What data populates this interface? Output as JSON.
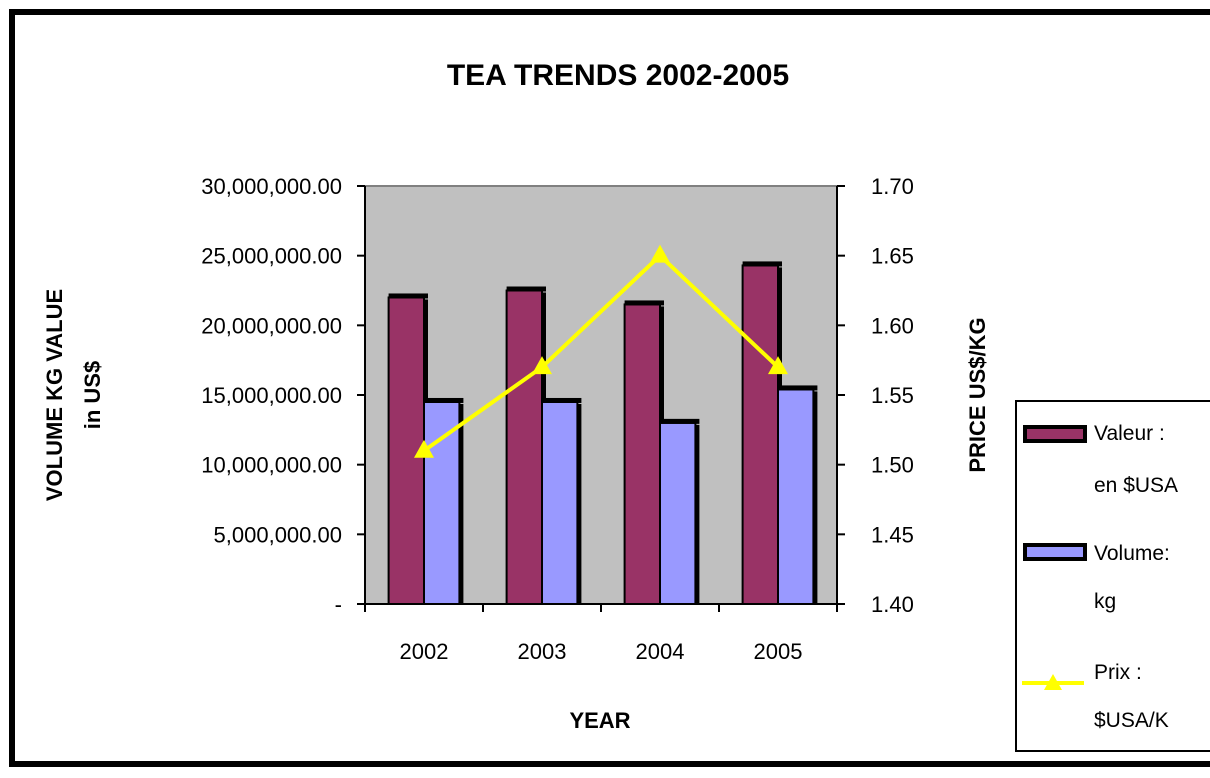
{
  "chart_data": {
    "type": "bar",
    "title": "TEA TRENDS 2002-2005",
    "xlabel": "YEAR",
    "ylabel_line1": "VOLUME KG VALUE",
    "ylabel_line2": "in US$",
    "y2label": "PRICE US$/KG",
    "categories": [
      "2002",
      "2003",
      "2004",
      "2005"
    ],
    "ylim": [
      0,
      30000000
    ],
    "y_ticks": [
      "30,000,000.00",
      "25,000,000.00",
      "20,000,000.00",
      "15,000,000.00",
      "10,000,000.00",
      "5,000,000.00",
      "-"
    ],
    "y2lim": [
      1.4,
      1.7
    ],
    "y2_ticks": [
      "1.70",
      "1.65",
      "1.60",
      "1.55",
      "1.50",
      "1.45",
      "1.40"
    ],
    "grid": false,
    "plot_background": "#c0c0c0",
    "legend_position": "right",
    "series": [
      {
        "name_line1": "Valeur :",
        "name_line2": "en $USA",
        "axis": "left",
        "kind": "bar",
        "color": "#993366",
        "values": [
          22000000,
          22500000,
          21500000,
          24300000
        ]
      },
      {
        "name_line1": "Volume:",
        "name_line2": "kg",
        "axis": "left",
        "kind": "bar",
        "color": "#9999ff",
        "values": [
          14500000,
          14500000,
          13000000,
          15400000
        ]
      },
      {
        "name_line1": "Prix :",
        "name_line2": "$USA/K",
        "axis": "right",
        "kind": "line",
        "color": "#ffff00",
        "marker": "triangle",
        "values": [
          1.51,
          1.57,
          1.65,
          1.57
        ]
      }
    ]
  }
}
